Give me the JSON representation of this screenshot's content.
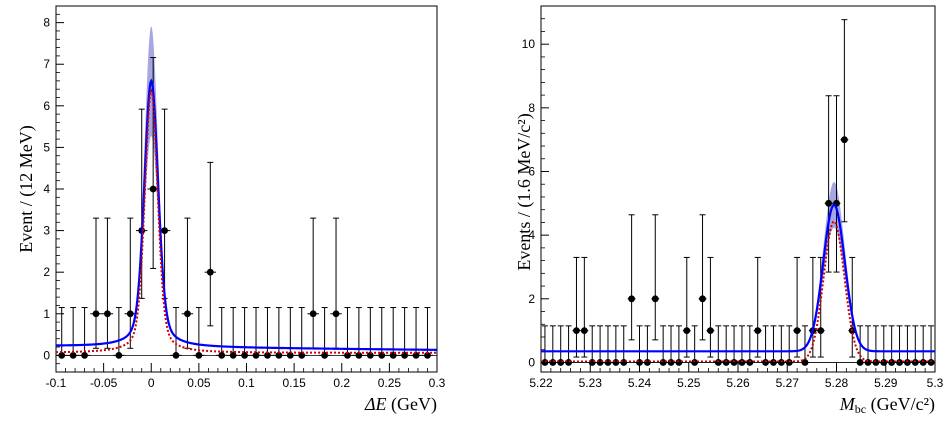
{
  "chart_data": [
    {
      "type": "scatter",
      "id": "deltaE",
      "ylabel": "Event / (12 MeV)",
      "xlabel_symbol": "ΔE",
      "xlabel_unit": "(GeV)",
      "xlim": [
        -0.1,
        0.3
      ],
      "ylim": [
        -0.4,
        8.4
      ],
      "xticks": [
        -0.1,
        -0.05,
        0,
        0.05,
        0.1,
        0.15,
        0.2,
        0.25,
        0.3
      ],
      "xtick_labels": [
        "-0.1",
        "-0.05",
        "0",
        "0.05",
        "0.1",
        "0.15",
        "0.2",
        "0.25",
        "0.3"
      ],
      "yticks": [
        0,
        1,
        2,
        3,
        4,
        5,
        6,
        7,
        8
      ],
      "ytick_labels": [
        "0",
        "1",
        "2",
        "3",
        "4",
        "5",
        "6",
        "7",
        "8"
      ],
      "bin_width": 0.012,
      "x": [
        -0.094,
        -0.082,
        -0.07,
        -0.058,
        -0.046,
        -0.034,
        -0.022,
        -0.01,
        0.002,
        0.014,
        0.026,
        0.038,
        0.05,
        0.062,
        0.074,
        0.086,
        0.098,
        0.11,
        0.122,
        0.134,
        0.146,
        0.158,
        0.17,
        0.182,
        0.194,
        0.206,
        0.218,
        0.23,
        0.242,
        0.254,
        0.266,
        0.278,
        0.29
      ],
      "y": [
        0,
        0,
        0,
        1,
        1,
        0,
        1,
        3,
        4,
        3,
        0,
        1,
        0,
        2,
        0,
        0,
        0,
        0,
        0,
        0,
        0,
        0,
        1,
        0,
        1,
        0,
        0,
        0,
        0,
        0,
        0,
        0,
        0
      ],
      "fit_total": {
        "color": "#0000ff",
        "mean": 0.0,
        "sigma": 0.007,
        "peak": 6.4,
        "bkg_left": 0.22,
        "bkg_right": 0.13
      },
      "fit_signal": {
        "color": "#cc0000",
        "mean": 0.0,
        "sigma": 0.0065,
        "peak": 6.3,
        "bkg": 0.06
      },
      "fit_band": {
        "color": "#0000aa",
        "half_width_at_peak": 1.3
      }
    },
    {
      "type": "scatter",
      "id": "mbc",
      "ylabel": "Events / (1.6 MeV/c²)",
      "xlabel_symbol": "M",
      "xlabel_sub": "bc",
      "xlabel_unit": "(GeV/c²)",
      "xlim": [
        5.22,
        5.3
      ],
      "ylim": [
        -0.3,
        11.2
      ],
      "xticks": [
        5.22,
        5.23,
        5.24,
        5.25,
        5.26,
        5.27,
        5.28,
        5.29,
        5.3
      ],
      "xtick_labels": [
        "5.22",
        "5.23",
        "5.24",
        "5.25",
        "5.26",
        "5.27",
        "5.28",
        "5.29",
        "5.3"
      ],
      "yticks": [
        0,
        2,
        4,
        6,
        8,
        10
      ],
      "ytick_labels": [
        "0",
        "2",
        "4",
        "6",
        "8",
        "10"
      ],
      "bin_width": 0.0016,
      "x": [
        5.2208,
        5.2224,
        5.224,
        5.2256,
        5.2272,
        5.2288,
        5.2304,
        5.232,
        5.2336,
        5.2352,
        5.2368,
        5.2384,
        5.24,
        5.2416,
        5.2432,
        5.2448,
        5.2464,
        5.248,
        5.2496,
        5.2512,
        5.2528,
        5.2544,
        5.256,
        5.2576,
        5.2592,
        5.2608,
        5.2624,
        5.264,
        5.2656,
        5.2672,
        5.2688,
        5.2704,
        5.272,
        5.2736,
        5.2752,
        5.2768,
        5.2784,
        5.28,
        5.2816,
        5.2832,
        5.2848,
        5.2864,
        5.288,
        5.2896,
        5.2912,
        5.2928,
        5.2944,
        5.296,
        5.2976,
        5.2992
      ],
      "y": [
        0,
        0,
        0,
        0,
        1,
        1,
        0,
        0,
        0,
        0,
        0,
        2,
        0,
        0,
        2,
        0,
        0,
        0,
        1,
        0,
        2,
        1,
        0,
        0,
        0,
        0,
        0,
        1,
        0,
        0,
        0,
        0,
        1,
        0,
        1,
        1,
        5,
        5,
        7,
        1,
        0,
        0,
        0,
        0,
        0,
        0,
        0,
        0,
        0,
        0
      ],
      "fit_total": {
        "color": "#0000ff",
        "mean": 5.2795,
        "sigma": 0.0022,
        "peak": 4.6,
        "bkg": 0.35
      },
      "fit_signal": {
        "color": "#cc0000",
        "mean": 5.2795,
        "sigma": 0.0021,
        "peak": 4.4,
        "bkg": 0.03
      },
      "fit_band": {
        "color": "#0000aa",
        "half_width_at_peak": 0.7
      }
    }
  ]
}
